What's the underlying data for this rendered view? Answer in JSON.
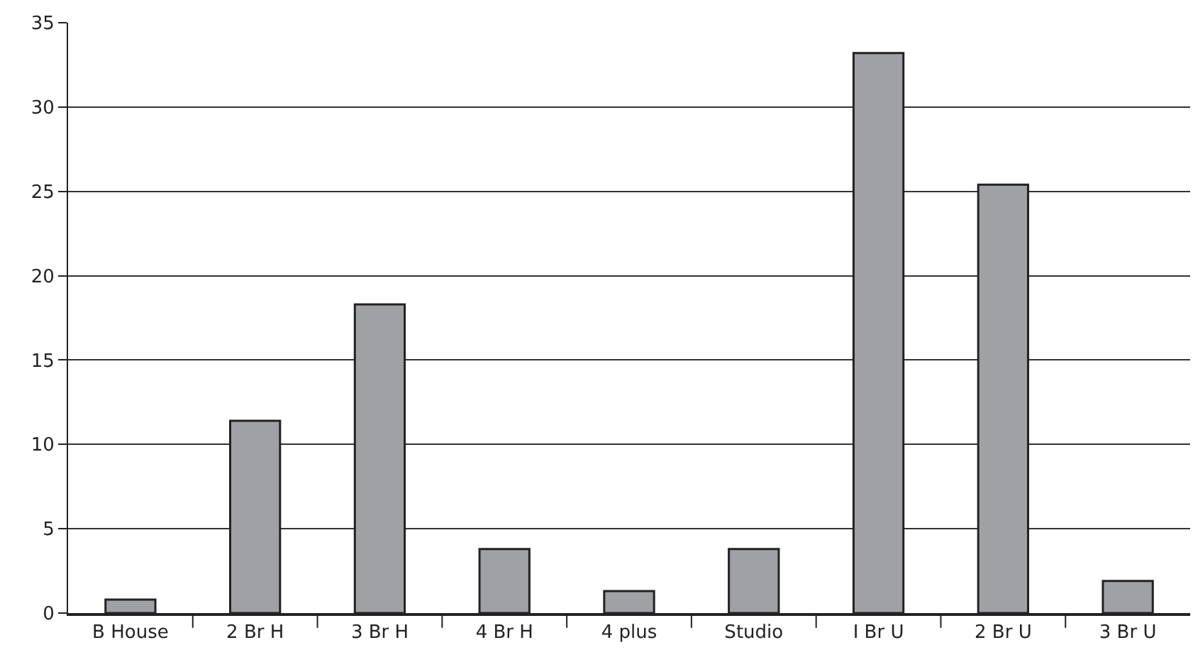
{
  "chart_data": {
    "type": "bar",
    "categories": [
      "B House",
      "2 Br H",
      "3 Br H",
      "4 Br H",
      "4 plus",
      "Studio",
      "I Br U",
      "2 Br U",
      "3 Br U"
    ],
    "values": [
      0.8,
      11.4,
      18.3,
      3.8,
      1.3,
      3.8,
      33.2,
      25.4,
      1.9
    ],
    "color": "#a0a1a5",
    "ylim": [
      0,
      35
    ],
    "yticks": [
      0,
      5,
      10,
      15,
      20,
      25,
      30,
      35
    ],
    "grid": "y"
  }
}
